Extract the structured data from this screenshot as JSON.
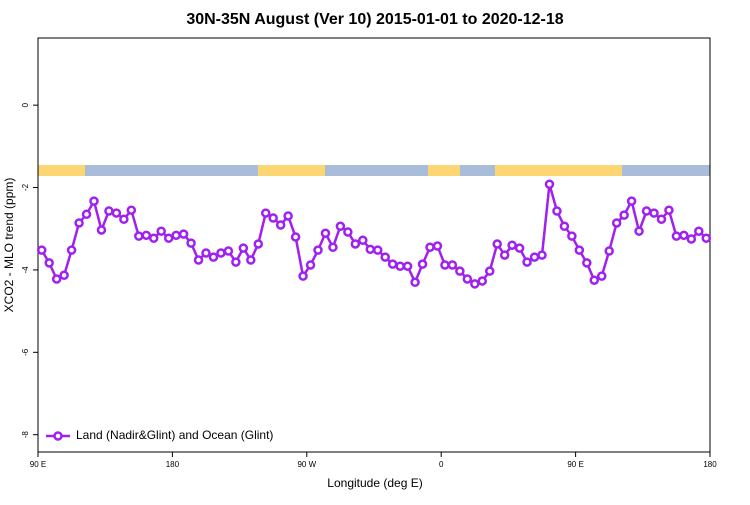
{
  "chart_data": {
    "type": "line",
    "title": "30N-35N August (Ver 10)   2015-01-01 to 2020-12-18",
    "x_label": "Longitude (deg E)",
    "y_label": "XCO2 - MLO trend (ppm)",
    "xlim": [
      90,
      540
    ],
    "ylim": [
      -8.42,
      1.63
    ],
    "xticks": [
      {
        "value": 90,
        "label": "90 E"
      },
      180,
      {
        "value": 270,
        "label": "90 W"
      },
      {
        "value": 360,
        "label": "0"
      },
      {
        "value": 450,
        "label": "90 E"
      },
      {
        "value": 540,
        "label": "180"
      }
    ],
    "yticks": [
      0,
      -2,
      -4,
      -6,
      -8
    ],
    "x": [
      92.5,
      97.5,
      102.5,
      107.5,
      112.5,
      117.5,
      122.5,
      127.5,
      132.5,
      137.5,
      142.5,
      147.5,
      152.5,
      157.5,
      162.5,
      167.5,
      172.5,
      177.5,
      182.5,
      187.5,
      192.5,
      197.5,
      202.5,
      207.5,
      212.5,
      217.5,
      222.5,
      227.5,
      232.5,
      237.5,
      242.5,
      247.5,
      252.5,
      257.5,
      262.5,
      267.5,
      272.5,
      277.5,
      282.5,
      287.5,
      292.5,
      297.5,
      302.5,
      307.5,
      312.5,
      317.5,
      322.5,
      327.5,
      332.5,
      337.5,
      342.5,
      347.5,
      352.5,
      357.5,
      362.5,
      367.5,
      372.5,
      377.5,
      382.5,
      387.5,
      392.5,
      397.5,
      402.5,
      407.5,
      412.5,
      417.5,
      422.5,
      427.5,
      432.5,
      437.5,
      442.5,
      447.5,
      452.5,
      457.5,
      462.5,
      467.5,
      472.5,
      477.5,
      482.5,
      487.5,
      492.5,
      497.5,
      502.5,
      507.5,
      512.5,
      517.5,
      522.5,
      527.5,
      532.5,
      537.5
    ],
    "series": [
      {
        "name": "Land (Nadir&Glint) and Ocean (Glint)",
        "color": "#a020f0",
        "values": [
          -3.52,
          -3.83,
          -4.22,
          -4.13,
          -3.52,
          -2.86,
          -2.65,
          -2.33,
          -3.03,
          -2.57,
          -2.62,
          -2.77,
          -2.55,
          -3.18,
          -3.16,
          -3.23,
          -3.06,
          -3.23,
          -3.16,
          -3.13,
          -3.35,
          -3.76,
          -3.59,
          -3.69,
          -3.59,
          -3.54,
          -3.81,
          -3.47,
          -3.76,
          -3.37,
          -2.62,
          -2.74,
          -2.91,
          -2.69,
          -3.2,
          -4.15,
          -3.88,
          -3.52,
          -3.11,
          -3.45,
          -2.94,
          -3.08,
          -3.37,
          -3.28,
          -3.5,
          -3.52,
          -3.69,
          -3.86,
          -3.91,
          -3.91,
          -4.3,
          -3.86,
          -3.45,
          -3.42,
          -3.88,
          -3.88,
          -4.03,
          -4.22,
          -4.34,
          -4.27,
          -4.03,
          -3.37,
          -3.64,
          -3.4,
          -3.47,
          -3.81,
          -3.69,
          -3.64,
          -1.92,
          -2.57,
          -2.94,
          -3.18,
          -3.52,
          -3.83,
          -4.25,
          -4.15,
          -3.54,
          -2.86,
          -2.67,
          -2.33,
          -3.06,
          -2.57,
          -2.62,
          -2.77,
          -2.55,
          -3.18,
          -3.16,
          -3.25,
          -3.06,
          -3.23
        ]
      }
    ],
    "legend": "bottom-left"
  }
}
